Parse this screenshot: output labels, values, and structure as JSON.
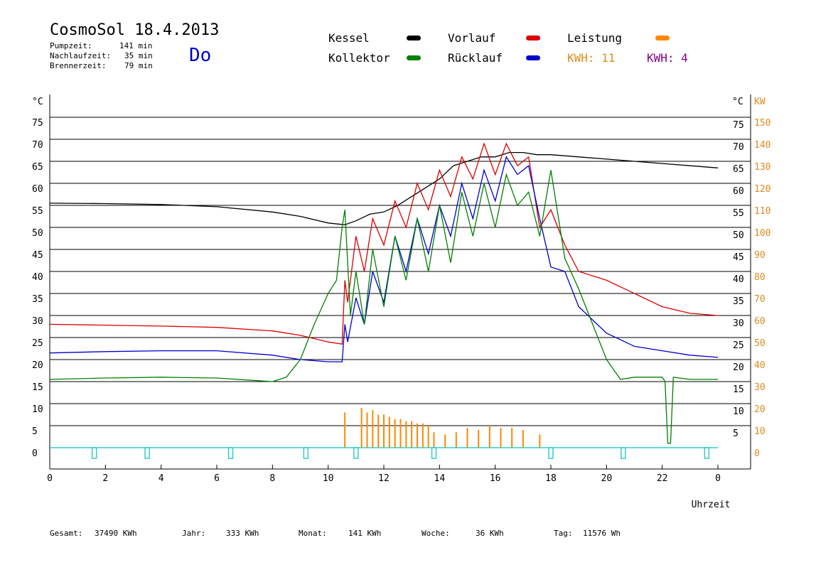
{
  "header": {
    "title": "CosmoSol 18.4.2013",
    "pumpzeit_label": "Pumpzeit:",
    "pumpzeit_value": "141 min",
    "nachlauf_label": "Nachlaufzeit:",
    "nachlauf_value": "35 min",
    "brenner_label": "Brennerzeit:",
    "brenner_value": "79 min",
    "day": "Do"
  },
  "legend": {
    "kessel": "Kessel",
    "kollektor": "Kollektor",
    "vorlauf": "Vorlauf",
    "ruecklauf": "Rücklauf",
    "leistung": "Leistung",
    "kwh1": "KWH: 11",
    "kwh2": "KWH: 4"
  },
  "colors": {
    "kessel": "#000000",
    "kollektor": "#008000",
    "vorlauf": "#dd0000",
    "ruecklauf": "#0000cc",
    "leistung": "#ff8800",
    "kwh2": "#800080",
    "cyan": "#33cccc",
    "axis_right2": "#e08a1e"
  },
  "axes": {
    "left_unit": "°C",
    "right_unit": "°C",
    "right2_unit": "KW",
    "xlabel": "Uhrzeit",
    "x_ticks": [
      "0",
      "2",
      "4",
      "6",
      "8",
      "10",
      "12",
      "14",
      "16",
      "18",
      "20",
      "22",
      "0"
    ],
    "left_ticks": [
      "75",
      "70",
      "65",
      "60",
      "55",
      "50",
      "45",
      "40",
      "35",
      "30",
      "25",
      "20",
      "15",
      "10",
      "5",
      "0"
    ],
    "right_ticks": [
      "75",
      "70",
      "65",
      "60",
      "55",
      "50",
      "45",
      "40",
      "35",
      "30",
      "25",
      "20",
      "15",
      "10",
      "5"
    ],
    "right2_ticks": [
      "150",
      "140",
      "130",
      "120",
      "110",
      "100",
      "90",
      "80",
      "70",
      "60",
      "50",
      "40",
      "30",
      "20",
      "10",
      "0"
    ]
  },
  "footer": {
    "gesamt_label": "Gesamt:",
    "gesamt_value": "37490 KWh",
    "jahr_label": "Jahr:",
    "jahr_value": "333 KWh",
    "monat_label": "Monat:",
    "monat_value": "141 KWh",
    "woche_label": "Woche:",
    "woche_value": "36 KWh",
    "tag_label": "Tag:",
    "tag_value": "11576 Wh"
  },
  "chart_data": {
    "type": "line",
    "xlim": [
      0,
      24
    ],
    "ylim": [
      0,
      80
    ],
    "series": [
      {
        "name": "Kessel",
        "color": "#000000",
        "x": [
          0,
          2,
          4,
          6,
          8,
          9,
          10,
          10.6,
          11,
          11.5,
          12,
          12.5,
          13,
          13.5,
          14,
          14.5,
          15,
          15.5,
          16,
          16.5,
          17,
          17.5,
          18,
          19,
          20,
          21,
          22,
          23,
          24
        ],
        "values": [
          55.5,
          55.4,
          55.2,
          54.7,
          53.5,
          52.5,
          51,
          50.6,
          51.5,
          53,
          53.5,
          55,
          57,
          59,
          61,
          64,
          65,
          66,
          66,
          67,
          67,
          66.5,
          66.5,
          66,
          65.5,
          65,
          64.5,
          64,
          63.5
        ]
      },
      {
        "name": "Vorlauf",
        "color": "#dd0000",
        "x": [
          0,
          2,
          4,
          6,
          8,
          9,
          10,
          10.5,
          10.6,
          10.7,
          11,
          11.3,
          11.6,
          12,
          12.4,
          12.8,
          13.2,
          13.6,
          14,
          14.4,
          14.8,
          15.2,
          15.6,
          16,
          16.4,
          16.8,
          17.2,
          17.6,
          18,
          18.5,
          19,
          20,
          21,
          22,
          23,
          24
        ],
        "values": [
          28,
          27.8,
          27.6,
          27.3,
          26.5,
          25.5,
          24,
          23.5,
          38,
          33,
          48,
          40,
          52,
          46,
          56,
          50,
          60,
          54,
          63,
          57,
          66,
          61,
          69,
          62,
          69,
          64,
          66,
          50,
          54,
          46,
          40,
          38,
          35,
          32,
          30.5,
          30
        ]
      },
      {
        "name": "Rücklauf",
        "color": "#0000cc",
        "x": [
          0,
          2,
          4,
          6,
          8,
          9,
          10,
          10.5,
          10.6,
          10.7,
          11,
          11.3,
          11.6,
          12,
          12.4,
          12.8,
          13.2,
          13.6,
          14,
          14.4,
          14.8,
          15.2,
          15.6,
          16,
          16.4,
          16.8,
          17.2,
          17.6,
          18,
          18.5,
          19,
          20,
          21,
          22,
          23,
          24
        ],
        "values": [
          21.5,
          21.8,
          22,
          22,
          21,
          20,
          19.5,
          19.5,
          28,
          24,
          34,
          28,
          40,
          33,
          48,
          40,
          52,
          44,
          55,
          48,
          60,
          52,
          63,
          56,
          66,
          62,
          64,
          52,
          41,
          40,
          32,
          26,
          23,
          22,
          21,
          20.5
        ]
      },
      {
        "name": "Kollektor",
        "color": "#008000",
        "x": [
          0,
          2,
          4,
          6,
          8,
          8.5,
          9,
          9.5,
          10,
          10.3,
          10.5,
          10.6,
          10.8,
          11,
          11.3,
          11.6,
          12,
          12.4,
          12.8,
          13.2,
          13.6,
          14,
          14.4,
          14.8,
          15.2,
          15.6,
          16,
          16.4,
          16.8,
          17.2,
          17.6,
          18,
          18.5,
          19,
          19.5,
          20,
          20.5,
          21,
          22,
          22.1,
          22.2,
          22.3,
          22.4,
          23,
          24
        ],
        "values": [
          15.5,
          15.8,
          16,
          15.8,
          15,
          16,
          20,
          28,
          35,
          38,
          50,
          54,
          30,
          40,
          28,
          45,
          32,
          48,
          38,
          52,
          40,
          55,
          42,
          58,
          48,
          60,
          50,
          62,
          55,
          58,
          48,
          63,
          43,
          36,
          28,
          20,
          15.5,
          16,
          16,
          15,
          1,
          1,
          16,
          15.5,
          15.5
        ]
      }
    ],
    "power_bars": {
      "name": "Leistung",
      "color": "#ff8800",
      "unit": "KW",
      "x": [
        10.6,
        11.2,
        11.4,
        11.6,
        11.8,
        12.0,
        12.2,
        12.4,
        12.6,
        12.8,
        13.0,
        13.2,
        13.4,
        13.6,
        13.8,
        14.2,
        14.6,
        15.0,
        15.4,
        15.8,
        16.2,
        16.6,
        17.0,
        17.6
      ],
      "values": [
        16,
        18,
        16,
        17,
        15,
        15,
        14,
        13,
        13,
        12,
        12,
        11,
        11,
        10,
        7,
        6,
        7,
        9,
        8,
        10,
        9,
        9,
        8,
        6
      ]
    },
    "cyan_markers_x": [
      1.6,
      3.5,
      6.5,
      9.2,
      11,
      13.8,
      18,
      20.6,
      23.6
    ]
  }
}
